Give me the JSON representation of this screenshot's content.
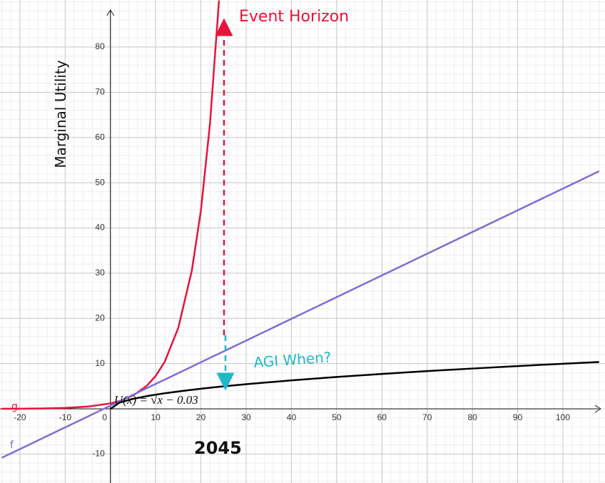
{
  "chart_data": {
    "type": "line",
    "x": [
      -24,
      -20,
      -15,
      -10,
      -5,
      0,
      2,
      5,
      8,
      10,
      12,
      15,
      18,
      20,
      22,
      24,
      30,
      40,
      50,
      60,
      70,
      80,
      90,
      100,
      108
    ],
    "series": [
      {
        "name": "g",
        "color": "#e8133a",
        "values": [
          0.02,
          0.03,
          0.08,
          0.2,
          0.49,
          1.2,
          1.72,
          2.95,
          5.06,
          7.26,
          10.4,
          17.9,
          30.6,
          43.9,
          63.0,
          90.3,
          null,
          null,
          null,
          null,
          null,
          null,
          null,
          null,
          null
        ]
      },
      {
        "name": "f",
        "color": "#7b6fd6",
        "values": [
          -10.82,
          -8.9,
          -6.5,
          -4.1,
          -1.7,
          0.7,
          1.66,
          3.1,
          4.54,
          5.5,
          6.46,
          7.9,
          9.34,
          10.3,
          11.26,
          12.22,
          15.1,
          19.9,
          24.7,
          29.5,
          34.3,
          39.1,
          43.9,
          48.7,
          52.54
        ]
      },
      {
        "name": "U(x) = √x − 0.03",
        "color": "#000000",
        "values": [
          null,
          null,
          null,
          null,
          null,
          -0.03,
          1.38,
          2.21,
          2.8,
          3.13,
          3.43,
          3.84,
          4.21,
          4.44,
          4.66,
          4.87,
          5.45,
          6.29,
          7.04,
          7.72,
          8.34,
          8.91,
          9.46,
          9.97,
          10.36
        ]
      }
    ],
    "xlim": [
      -24.4,
      109.3
    ],
    "ylim": [
      -16.4,
      90.4
    ],
    "xticks": [
      -20,
      -10,
      0,
      10,
      20,
      30,
      40,
      50,
      60,
      70,
      80,
      90,
      100
    ],
    "yticks": [
      -10,
      10,
      20,
      30,
      40,
      50,
      60,
      70,
      80
    ],
    "grid": true,
    "y_label": "Marginal Utility",
    "annotations": [
      "Event Horizon",
      "AGI When?",
      "2045"
    ]
  }
}
